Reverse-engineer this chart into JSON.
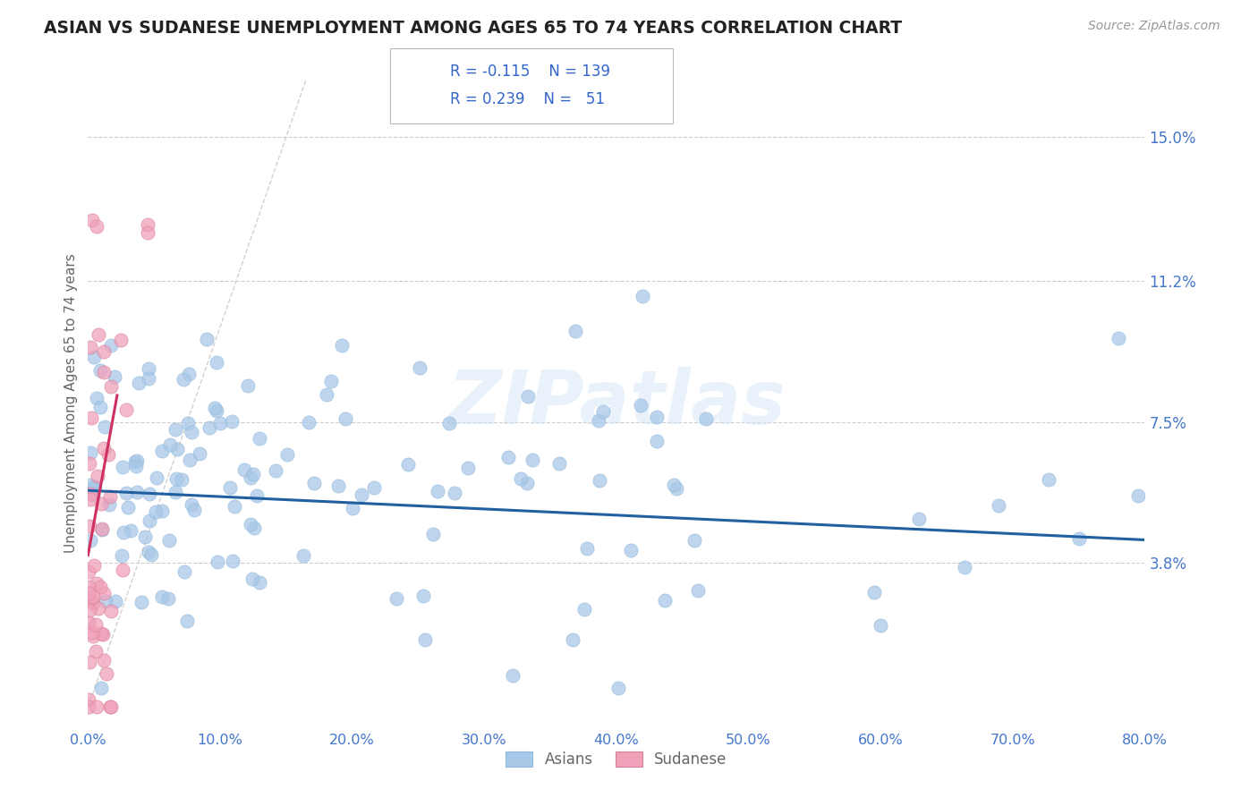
{
  "title": "ASIAN VS SUDANESE UNEMPLOYMENT AMONG AGES 65 TO 74 YEARS CORRELATION CHART",
  "source": "Source: ZipAtlas.com",
  "ylabel": "Unemployment Among Ages 65 to 74 years",
  "xlim": [
    0,
    0.8
  ],
  "ylim": [
    -0.005,
    0.165
  ],
  "xticks": [
    0.0,
    0.1,
    0.2,
    0.3,
    0.4,
    0.5,
    0.6,
    0.7,
    0.8
  ],
  "xticklabels": [
    "0.0%",
    "10.0%",
    "20.0%",
    "30.0%",
    "40.0%",
    "50.0%",
    "60.0%",
    "70.0%",
    "80.0%"
  ],
  "ytick_positions": [
    0.038,
    0.075,
    0.112,
    0.15
  ],
  "ytick_labels": [
    "3.8%",
    "7.5%",
    "11.2%",
    "15.0%"
  ],
  "asian_color": "#a8c8e8",
  "sudanese_color": "#f0a0b8",
  "trend_asian_color": "#2060a0",
  "trend_sudanese_color": "#d03060",
  "legend_asian_r": "-0.115",
  "legend_asian_n": "139",
  "legend_sudanese_r": "0.239",
  "legend_sudanese_n": "51",
  "watermark": "ZIPatlas",
  "background_color": "#ffffff",
  "grid_color": "#c8c8c8",
  "title_color": "#222222",
  "axis_label_color": "#666666",
  "tick_label_color": "#4477cc",
  "asian_trend_start_x": 0.0,
  "asian_trend_end_x": 0.8,
  "asian_trend_start_y": 0.057,
  "asian_trend_end_y": 0.044,
  "sudanese_trend_start_x": 0.0,
  "sudanese_trend_end_x": 0.022,
  "sudanese_trend_start_y": 0.04,
  "sudanese_trend_end_y": 0.082
}
